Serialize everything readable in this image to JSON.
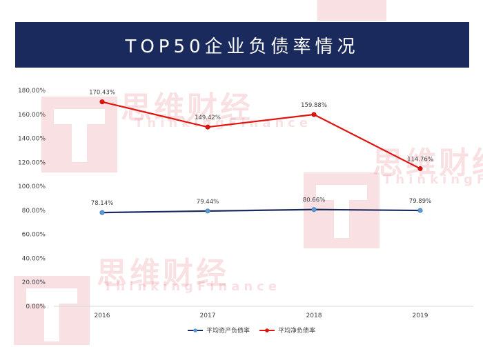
{
  "header": {
    "title": "TOP50企业负债率情况"
  },
  "watermark": {
    "brand": "思维财经",
    "sub": "ThinkingFinance"
  },
  "colors": {
    "banner": "#1b2a5c",
    "asset_line": "#1b2a5c",
    "net_line": "#e0140f",
    "marker": "#5b9bd5"
  },
  "chart_data": {
    "type": "line",
    "title": "",
    "xlabel": "",
    "ylabel": "",
    "categories": [
      "2016",
      "2017",
      "2018",
      "2019"
    ],
    "ylim": [
      0,
      180
    ],
    "yticks": [
      "0.00%",
      "20.00%",
      "40.00%",
      "60.00%",
      "80.00%",
      "100.00%",
      "120.00%",
      "140.00%",
      "160.00%",
      "180.00%"
    ],
    "grid": false,
    "legend_position": "bottom",
    "series": [
      {
        "name": "平均资产负债率",
        "values": [
          78.14,
          79.44,
          80.66,
          79.89
        ],
        "labels": [
          "78.14%",
          "79.44%",
          "80.66%",
          "79.89%"
        ]
      },
      {
        "name": "平均净负债率",
        "values": [
          170.43,
          149.42,
          159.88,
          114.76
        ],
        "labels": [
          "170.43%",
          "149.42%",
          "159.88%",
          "114.76%"
        ]
      }
    ]
  }
}
